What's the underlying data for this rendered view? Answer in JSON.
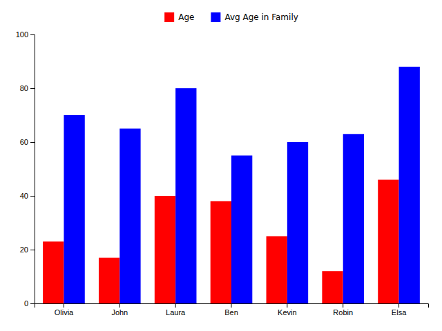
{
  "chart_data": {
    "type": "bar",
    "categories": [
      "Olivia",
      "John",
      "Laura",
      "Ben",
      "Kevin",
      "Robin",
      "Elsa"
    ],
    "series": [
      {
        "name": "Age",
        "color": "red",
        "values": [
          23,
          17,
          40,
          38,
          25,
          12,
          46
        ]
      },
      {
        "name": "Avg Age in Family",
        "color": "blue",
        "values": [
          70,
          65,
          80,
          55,
          60,
          63,
          88
        ]
      }
    ],
    "ylim": [
      0,
      100
    ],
    "yticks": [
      0,
      20,
      40,
      60,
      80,
      100
    ],
    "legend": "top"
  }
}
